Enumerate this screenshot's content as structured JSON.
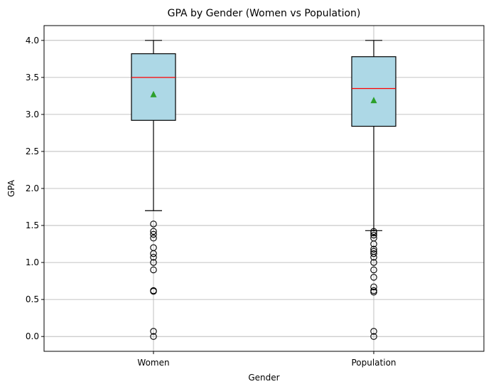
{
  "chart_data": {
    "type": "box",
    "title": "GPA by Gender (Women vs Population)",
    "xlabel": "Gender",
    "ylabel": "GPA",
    "ylim": [
      -0.2,
      4.2
    ],
    "yticks": [
      "0.0",
      "0.5",
      "1.0",
      "1.5",
      "2.0",
      "2.5",
      "3.0",
      "3.5",
      "4.0"
    ],
    "grid": true,
    "categories": [
      "Women",
      "Population"
    ],
    "boxes": [
      {
        "category": "Women",
        "whisker_low": 1.7,
        "q1": 2.92,
        "median": 3.5,
        "q3": 3.82,
        "whisker_high": 4.0,
        "mean": 3.27,
        "outliers": [
          1.52,
          1.42,
          1.38,
          1.33,
          1.2,
          1.12,
          1.07,
          1.0,
          0.9,
          0.62,
          0.61,
          0.07,
          0.0
        ]
      },
      {
        "category": "Population",
        "whisker_low": 1.43,
        "q1": 2.84,
        "median": 3.35,
        "q3": 3.78,
        "whisker_high": 4.0,
        "mean": 3.19,
        "outliers": [
          1.42,
          1.4,
          1.37,
          1.33,
          1.25,
          1.18,
          1.15,
          1.12,
          1.07,
          1.0,
          0.9,
          0.8,
          0.67,
          0.62,
          0.6,
          0.07,
          0.0
        ]
      }
    ],
    "colors": {
      "box_fill": "#add8e6",
      "median": "#ff0000",
      "mean_marker": "#2ca02c",
      "grid": "#b0b0b0"
    }
  }
}
